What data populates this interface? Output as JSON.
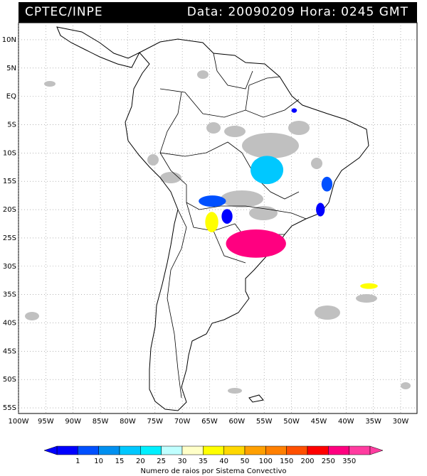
{
  "header": {
    "organization": "CPTEC/INPE",
    "stamp": "Data: 20090209  Hora: 0245 GMT"
  },
  "map": {
    "lat_labels": [
      "10N",
      "5N",
      "EQ",
      "5S",
      "10S",
      "15S",
      "20S",
      "25S",
      "30S",
      "35S",
      "40S",
      "45S",
      "50S",
      "55S"
    ],
    "lon_labels": [
      "100W",
      "95W",
      "90W",
      "85W",
      "80W",
      "75W",
      "70W",
      "65W",
      "60W",
      "55W",
      "50W",
      "45W",
      "40W",
      "35W",
      "30W"
    ],
    "grid": "dotted",
    "domain_lon": [
      -100,
      -27
    ],
    "domain_lat": [
      -56,
      13
    ],
    "cells": [
      {
        "lon": -54.5,
        "lat": -13.0,
        "rx": 3.0,
        "ry": 2.5,
        "class": "15-20"
      },
      {
        "lon": -43.5,
        "lat": -15.5,
        "rx": 1.0,
        "ry": 1.3,
        "class": "10-15"
      },
      {
        "lon": -44.7,
        "lat": -20.0,
        "rx": 0.8,
        "ry": 1.2,
        "class": "1-10"
      },
      {
        "lon": -64.5,
        "lat": -18.5,
        "rx": 2.5,
        "ry": 1.0,
        "class": "10-15"
      },
      {
        "lon": -61.8,
        "lat": -21.2,
        "rx": 1.0,
        "ry": 1.3,
        "class": "1-10"
      },
      {
        "lon": -64.6,
        "lat": -22.2,
        "rx": 1.2,
        "ry": 1.8,
        "class": "30-35"
      },
      {
        "lon": -56.5,
        "lat": -26.0,
        "rx": 5.5,
        "ry": 2.5,
        "class": "350+"
      },
      {
        "lon": -35.8,
        "lat": -33.5,
        "rx": 1.6,
        "ry": 0.5,
        "class": "30-35"
      },
      {
        "lon": -49.5,
        "lat": -2.5,
        "rx": 0.5,
        "ry": 0.4,
        "class": "1-10"
      }
    ]
  },
  "legend": {
    "labels": [
      "1",
      "10",
      "15",
      "20",
      "25",
      "30",
      "35",
      "40",
      "50",
      "100",
      "150",
      "200",
      "250",
      "350"
    ],
    "colors": [
      "#0000ff",
      "#0050ff",
      "#0090f0",
      "#00c8ff",
      "#00f0ff",
      "#c0ffff",
      "#ffffc8",
      "#ffff00",
      "#ffd800",
      "#ffa000",
      "#ff8000",
      "#ff5000",
      "#ff0000",
      "#ff0080",
      "#ff3ca0"
    ],
    "caption": "Numero de raios por Sistema Convectivo"
  }
}
